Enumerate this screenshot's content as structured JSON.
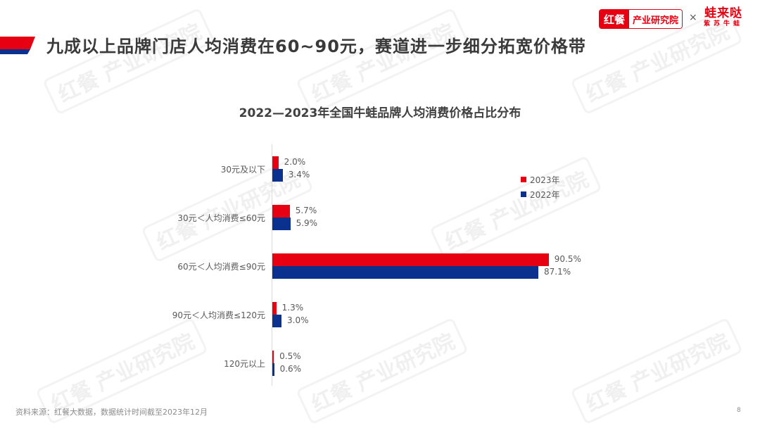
{
  "header": {
    "title": "九成以上品牌门店人均消费在60~90元，赛道进一步细分拓宽价格带",
    "logo_red_text": "红餐",
    "logo_white_text": "产业研究院",
    "logo_separator": "×",
    "brand_name": "蛙来哒",
    "brand_sub": "紫苏牛蛙"
  },
  "watermark_text": "红餐 产业研究院",
  "colors": {
    "series_2023": "#e60012",
    "series_2022": "#0b318f",
    "accent": "#e60012"
  },
  "legend": {
    "items": [
      {
        "label": "2023年",
        "color": "#e60012"
      },
      {
        "label": "2022年",
        "color": "#0b318f"
      }
    ]
  },
  "chart_data": {
    "type": "bar",
    "orientation": "horizontal",
    "title": "2022—2023年全国牛蛙品牌人均消费价格占比分布",
    "categories": [
      "30元及以下",
      "30元＜人均消费≤60元",
      "60元＜人均消费≤90元",
      "90元＜人均消费≤120元",
      "120元以上"
    ],
    "series": [
      {
        "name": "2023年",
        "values": [
          2.0,
          5.7,
          90.5,
          1.3,
          0.5
        ],
        "labels": [
          "2.0%",
          "5.7%",
          "90.5%",
          "1.3%",
          "0.5%"
        ]
      },
      {
        "name": "2022年",
        "values": [
          3.4,
          5.9,
          87.1,
          3.0,
          0.6
        ],
        "labels": [
          "3.4%",
          "5.9%",
          "87.1%",
          "3.0%",
          "0.6%"
        ]
      }
    ],
    "xlabel": "",
    "ylabel": "",
    "unit": "%",
    "grid": false,
    "legend_position": "right-top",
    "data_labels": true
  },
  "footer": {
    "source": "资料来源：红餐大数据，数据统计时间截至2023年12月",
    "page_number": "8"
  }
}
